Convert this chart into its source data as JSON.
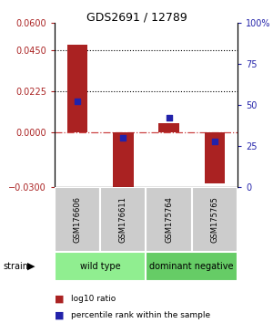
{
  "title": "GDS2691 / 12789",
  "samples": [
    "GSM176606",
    "GSM176611",
    "GSM175764",
    "GSM175765"
  ],
  "log10_ratio": [
    0.048,
    -0.033,
    0.005,
    -0.028
  ],
  "percentile_rank": [
    52,
    30,
    42,
    28
  ],
  "groups": [
    {
      "label": "wild type",
      "samples": [
        0,
        1
      ],
      "color": "#90EE90"
    },
    {
      "label": "dominant negative",
      "samples": [
        2,
        3
      ],
      "color": "#66CC66"
    }
  ],
  "bar_color": "#AA2222",
  "dot_color": "#2222AA",
  "ylim_left": [
    -0.03,
    0.06
  ],
  "ylim_right": [
    0,
    100
  ],
  "yticks_left": [
    -0.03,
    0,
    0.0225,
    0.045,
    0.06
  ],
  "yticks_right": [
    0,
    25,
    50,
    75,
    100
  ],
  "hline_positions": [
    0.045,
    0.0225
  ],
  "hline_color": "black",
  "zero_line_color": "#CC4444",
  "background_color": "white",
  "plot_bg": "white",
  "legend_items": [
    {
      "label": "log10 ratio",
      "color": "#AA2222"
    },
    {
      "label": "percentile rank within the sample",
      "color": "#2222AA"
    }
  ]
}
